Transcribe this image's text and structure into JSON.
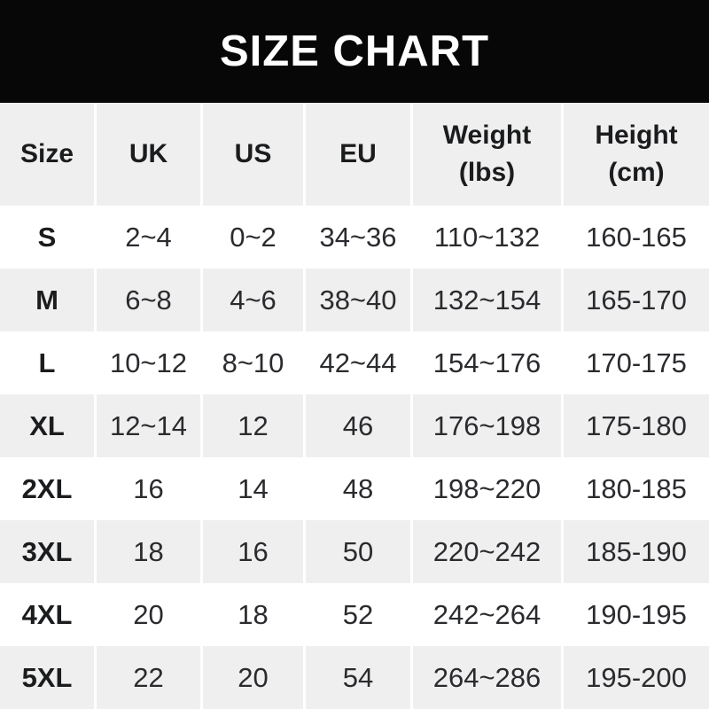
{
  "title": "SIZE CHART",
  "colors": {
    "banner_bg": "#070707",
    "banner_text": "#ffffff",
    "row_alt_bg": "#efefef",
    "row_bg": "#ffffff",
    "text_bold": "#1b1c1e",
    "text_regular": "#2a2b2e"
  },
  "table": {
    "headers": [
      "Size",
      "UK",
      "US",
      "EU",
      "Weight\n(lbs)",
      "Height\n(cm)"
    ],
    "rows": [
      {
        "size": "S",
        "uk": "2~4",
        "us": "0~2",
        "eu": "34~36",
        "weight_lbs": "110~132",
        "height_cm": "160-165"
      },
      {
        "size": "M",
        "uk": "6~8",
        "us": "4~6",
        "eu": "38~40",
        "weight_lbs": "132~154",
        "height_cm": "165-170"
      },
      {
        "size": "L",
        "uk": "10~12",
        "us": "8~10",
        "eu": "42~44",
        "weight_lbs": "154~176",
        "height_cm": "170-175"
      },
      {
        "size": "XL",
        "uk": "12~14",
        "us": "12",
        "eu": "46",
        "weight_lbs": "176~198",
        "height_cm": "175-180"
      },
      {
        "size": "2XL",
        "uk": "16",
        "us": "14",
        "eu": "48",
        "weight_lbs": "198~220",
        "height_cm": "180-185"
      },
      {
        "size": "3XL",
        "uk": "18",
        "us": "16",
        "eu": "50",
        "weight_lbs": "220~242",
        "height_cm": "185-190"
      },
      {
        "size": "4XL",
        "uk": "20",
        "us": "18",
        "eu": "52",
        "weight_lbs": "242~264",
        "height_cm": "190-195"
      },
      {
        "size": "5XL",
        "uk": "22",
        "us": "20",
        "eu": "54",
        "weight_lbs": "264~286",
        "height_cm": "195-200"
      }
    ]
  }
}
